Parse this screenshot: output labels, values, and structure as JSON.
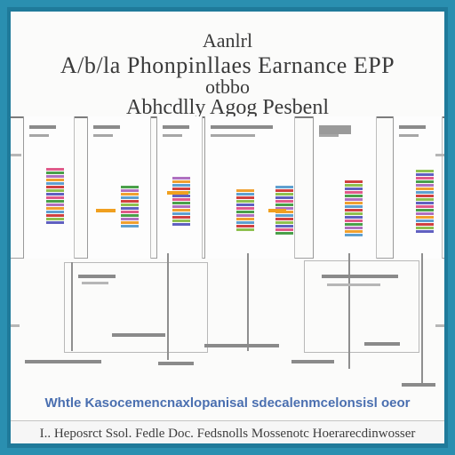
{
  "title_lines": [
    "Aanlrl",
    "A/b/la Phonpinllaes Earnance EPP",
    "otbbo",
    "Abhcdlly Agog Pesbenl"
  ],
  "footer_title": "Whtle Kasocemencnaxlopanisal sdecalenmcelonsisl oeor",
  "footer_text": "I.. Heposrct Ssol. Fedle Doc. Fedsnolls Mossenotc Hoerarecdinwosser",
  "palette": {
    "frame": "#1f7a9a",
    "stripe_colors": [
      "#e05a8a",
      "#4aa04a",
      "#b070c0",
      "#f0a030",
      "#5fa0d0",
      "#d04040",
      "#8fc04f",
      "#6060c0"
    ]
  }
}
